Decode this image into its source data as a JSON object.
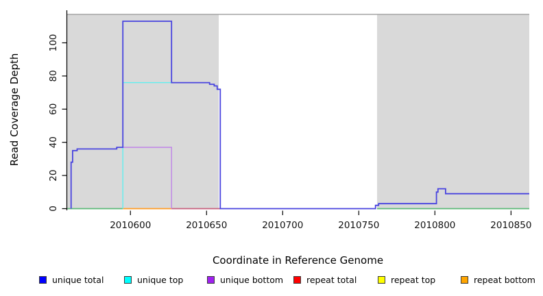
{
  "chart_data": {
    "type": "line",
    "subtype": "step-coverage",
    "title": "",
    "xlabel": "Coordinate in Reference Genome",
    "ylabel": "Read Coverage Depth",
    "xlim": [
      2010558,
      2010862
    ],
    "ylim": [
      0,
      117
    ],
    "x_ticks": [
      2010600,
      2010650,
      2010700,
      2010750,
      2010800,
      2010850
    ],
    "y_ticks": [
      0,
      20,
      40,
      60,
      80,
      100
    ],
    "grid": false,
    "legend_position": "bottom",
    "shaded_regions": [
      {
        "from": 2010558,
        "to": 2010658,
        "meaning": "shaded background block"
      },
      {
        "from": 2010762,
        "to": 2010862,
        "meaning": "shaded background block"
      }
    ],
    "series": [
      {
        "name": "unique total",
        "color_key": "unique_total_line",
        "points": [
          [
            2010561,
            0
          ],
          [
            2010561,
            28
          ],
          [
            2010562,
            35
          ],
          [
            2010565,
            36
          ],
          [
            2010591,
            37
          ],
          [
            2010595,
            113
          ],
          [
            2010627,
            76
          ],
          [
            2010652,
            75
          ],
          [
            2010655,
            74
          ],
          [
            2010657,
            72
          ],
          [
            2010659,
            0
          ],
          [
            2010761,
            2
          ],
          [
            2010763,
            3
          ],
          [
            2010801,
            10
          ],
          [
            2010802,
            12
          ],
          [
            2010807,
            9
          ],
          [
            2010862,
            9
          ]
        ]
      },
      {
        "name": "unique top",
        "color_key": "unique_top_line",
        "points": [
          [
            2010595,
            0
          ],
          [
            2010595,
            76
          ],
          [
            2010627,
            76
          ]
        ]
      },
      {
        "name": "unique bottom",
        "color_key": "unique_bottom_line",
        "points": [
          [
            2010595,
            37
          ],
          [
            2010627,
            37
          ],
          [
            2010627,
            0
          ]
        ]
      }
    ],
    "zero_segments": [
      {
        "label": "zero coverage segment (green)",
        "from": 2010558,
        "to": 2010595,
        "color_key": "zero_green"
      },
      {
        "label": "zero coverage segment (orange)",
        "from": 2010595,
        "to": 2010627,
        "color_key": "zero_orange"
      },
      {
        "label": "zero coverage segment (crimson)",
        "from": 2010627,
        "to": 2010659,
        "color_key": "zero_crimson"
      },
      {
        "label": "zero coverage segment (green)",
        "from": 2010762,
        "to": 2010862,
        "color_key": "zero_green"
      }
    ],
    "legend": [
      {
        "label": "unique total",
        "color": "#0000ff"
      },
      {
        "label": "unique top",
        "color": "#00ffff"
      },
      {
        "label": "unique bottom",
        "color": "#a020f0"
      },
      {
        "label": "repeat total",
        "color": "#ff0000"
      },
      {
        "label": "repeat top",
        "color": "#ffff00"
      },
      {
        "label": "repeat bottom",
        "color": "#ffa500"
      }
    ]
  },
  "colors": {
    "background": "#ffffff",
    "shade": "#d9d9d9",
    "shade_top_line": "#a3a3a3",
    "axis": "#000000",
    "tick_text": "#111111",
    "unique_total_line": "#4843df",
    "unique_top_line": "#5ff0f0",
    "unique_bottom_line": "#c083e8",
    "zero_green": "#5bb878",
    "zero_orange": "#ff9d24",
    "zero_crimson": "#c75f7d"
  }
}
